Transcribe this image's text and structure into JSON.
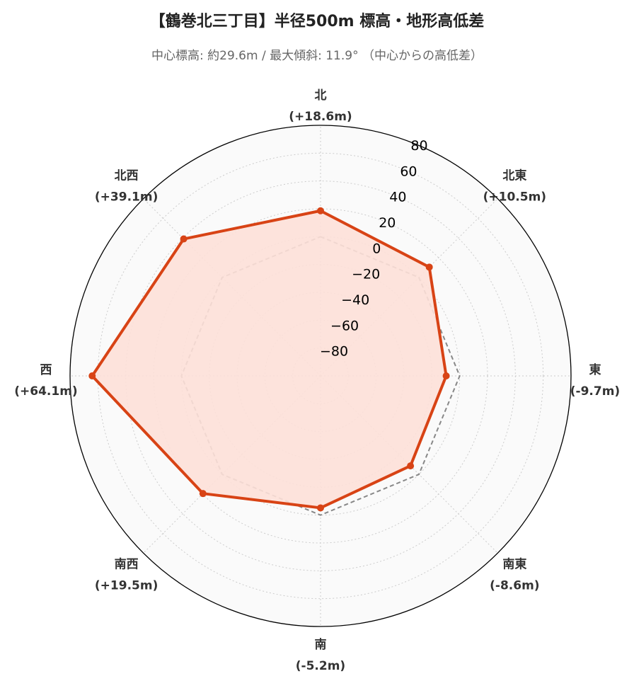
{
  "title": "【鶴巻北三丁目】半径500m 標高・地形高低差",
  "subtitle": "中心標高: 約29.6m / 最大傾斜: 11.9° （中心からの高低差）",
  "colors": {
    "series": "#d84315",
    "fill": "#fde0d8",
    "baseline": "#888888",
    "background": "#fafafa",
    "grid": "#cccccc"
  },
  "chart_data": {
    "type": "radar",
    "title": "【鶴巻北三丁目】半径500m 標高・地形高低差",
    "subtitle": "中心標高: 約29.6m / 最大傾斜: 11.9° （中心からの高低差）",
    "rlim": [
      -100,
      80
    ],
    "rticks": [
      -80,
      -60,
      -40,
      -20,
      0,
      20,
      40,
      60,
      80
    ],
    "grid": true,
    "categories": [
      {
        "name": "北",
        "delta": "(+18.6m)"
      },
      {
        "name": "北東",
        "delta": "(+10.5m)"
      },
      {
        "name": "東",
        "delta": "(-9.7m)"
      },
      {
        "name": "南東",
        "delta": "(-8.6m)"
      },
      {
        "name": "南",
        "delta": "(-5.2m)"
      },
      {
        "name": "南西",
        "delta": "(+19.5m)"
      },
      {
        "name": "西",
        "delta": "(+64.1m)"
      },
      {
        "name": "北西",
        "delta": "(+39.1m)"
      }
    ],
    "values": [
      18.6,
      10.5,
      -9.7,
      -8.6,
      -5.2,
      19.5,
      64.1,
      39.1
    ],
    "baseline": 0
  }
}
